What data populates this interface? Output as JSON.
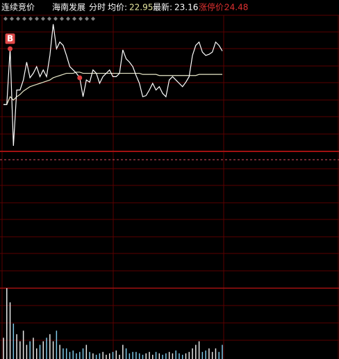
{
  "header": {
    "mode": "连续竞价",
    "stock": "海南发展",
    "view": "分时",
    "avg_label": "均价:",
    "avg": "22.95",
    "last_label": "最新:",
    "last": "23.16",
    "limit_label": "涨停价:",
    "limit": "24.48"
  },
  "chart_data": {
    "type": "line",
    "series": [
      {
        "name": "价格",
        "color": "#ffffff",
        "values": [
          22.68,
          22.68,
          23.18,
          22.31,
          22.81,
          22.81,
          22.9,
          23.06,
          22.92,
          22.96,
          23.02,
          22.93,
          22.99,
          22.93,
          23.12,
          23.4,
          23.18,
          23.24,
          23.21,
          23.12,
          23.02,
          22.99,
          22.96,
          22.92,
          22.75,
          22.9,
          22.88,
          22.99,
          22.96,
          22.87,
          22.93,
          22.96,
          22.99,
          22.93,
          22.93,
          22.96,
          23.17,
          23.09,
          23.06,
          23.02,
          22.94,
          22.87,
          22.75,
          22.76,
          22.81,
          22.87,
          22.81,
          22.84,
          22.78,
          22.75,
          22.9,
          22.93,
          22.9,
          22.87,
          22.84,
          22.88,
          22.93,
          23.12,
          23.21,
          23.24,
          23.15,
          23.12,
          23.13,
          23.15,
          23.24,
          23.21,
          23.16
        ]
      },
      {
        "name": "均价",
        "color": "#e8e8c8",
        "values": [
          22.68,
          22.68,
          22.75,
          22.72,
          22.75,
          22.77,
          22.8,
          22.82,
          22.84,
          22.85,
          22.86,
          22.87,
          22.88,
          22.89,
          22.9,
          22.92,
          22.93,
          22.94,
          22.95,
          22.96,
          22.96,
          22.96,
          22.97,
          22.97,
          22.96,
          22.96,
          22.96,
          22.96,
          22.96,
          22.96,
          22.96,
          22.96,
          22.96,
          22.96,
          22.96,
          22.96,
          22.96,
          22.96,
          22.96,
          22.96,
          22.96,
          22.96,
          22.95,
          22.95,
          22.95,
          22.95,
          22.95,
          22.94,
          22.94,
          22.94,
          22.94,
          22.94,
          22.94,
          22.94,
          22.94,
          22.94,
          22.94,
          22.94,
          22.94,
          22.95,
          22.95,
          22.95,
          22.95,
          22.95,
          22.95,
          22.95,
          22.95
        ]
      }
    ],
    "volume": [
      30,
      100,
      80,
      50,
      35,
      25,
      40,
      20,
      25,
      30,
      15,
      20,
      25,
      30,
      35,
      25,
      40,
      20,
      15,
      15,
      10,
      12,
      8,
      10,
      15,
      20,
      10,
      8,
      6,
      8,
      10,
      6,
      8,
      10,
      12,
      6,
      20,
      15,
      8,
      10,
      10,
      8,
      6,
      8,
      10,
      6,
      10,
      8,
      6,
      8,
      10,
      8,
      12,
      8,
      6,
      8,
      10,
      15,
      20,
      25,
      10,
      12,
      15,
      10,
      15,
      10,
      20
    ],
    "ylim": [
      22.26,
      23.48
    ],
    "vlim": [
      0,
      100
    ],
    "markers": [
      {
        "label": "B",
        "at": 2
      },
      {
        "at": 23
      }
    ]
  }
}
